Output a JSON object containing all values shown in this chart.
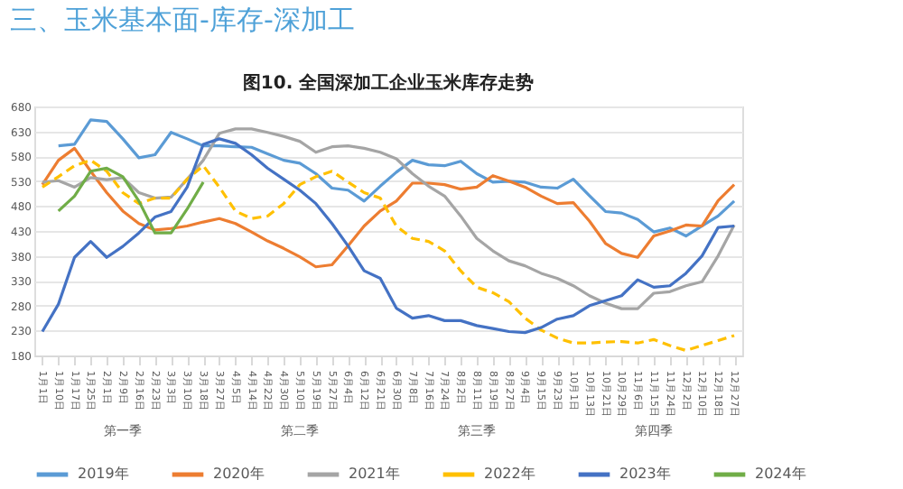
{
  "chart_data": {
    "type": "line",
    "title": "图10. 全国深加工企业玉米库存走势",
    "subtitle": "三、玉米基本面-库存-深加工",
    "categories": [
      "1月1日",
      "1月10日",
      "1月17日",
      "1月25日",
      "2月1日",
      "2月9日",
      "2月16日",
      "2月23日",
      "3月3日",
      "3月10日",
      "3月18日",
      "3月27日",
      "4月5日",
      "4月14日",
      "4月22日",
      "4月30日",
      "5月10日",
      "5月19日",
      "5月27日",
      "6月4日",
      "6月12日",
      "6月21日",
      "6月30日",
      "7月8日",
      "7月16日",
      "7月24日",
      "8月2日",
      "8月11日",
      "8月19日",
      "8月27日",
      "9月4日",
      "9月15日",
      "9月23日",
      "10月1日",
      "10月13日",
      "10月21日",
      "10月29日",
      "11月6日",
      "11月15日",
      "11月24日",
      "12月2日",
      "12月10日",
      "12月18日",
      "12月27日"
    ],
    "series": [
      {
        "name": "2019年",
        "color": "#5b9bd5",
        "values": [
          null,
          601,
          604,
          653,
          650,
          615,
          577,
          583,
          628,
          615,
          601,
          601,
          599,
          598,
          585,
          572,
          566,
          545,
          516,
          512,
          490,
          520,
          548,
          572,
          563,
          561,
          570,
          545,
          528,
          530,
          528,
          518,
          516,
          534,
          501,
          469,
          466,
          453,
          428,
          436,
          420,
          440,
          460,
          490
        ]
      },
      {
        "name": "2020年",
        "color": "#ed7d31",
        "values": [
          523,
          572,
          596,
          550,
          507,
          470,
          445,
          432,
          435,
          440,
          448,
          455,
          445,
          428,
          410,
          395,
          378,
          358,
          362,
          400,
          440,
          470,
          490,
          526,
          526,
          523,
          514,
          518,
          541,
          530,
          518,
          500,
          485,
          487,
          450,
          405,
          385,
          377,
          420,
          430,
          442,
          440,
          491,
          523
        ]
      },
      {
        "name": "2021年",
        "color": "#a5a5a5",
        "values": [
          528,
          531,
          518,
          537,
          533,
          537,
          507,
          496,
          498,
          534,
          572,
          626,
          635,
          635,
          628,
          620,
          610,
          588,
          599,
          601,
          596,
          588,
          575,
          545,
          520,
          500,
          460,
          415,
          390,
          370,
          360,
          345,
          335,
          320,
          300,
          285,
          274,
          274,
          305,
          308,
          320,
          328,
          380,
          442
        ]
      },
      {
        "name": "2022年",
        "color": "#ffc000",
        "line_style": "dashed",
        "values": [
          518,
          539,
          561,
          572,
          550,
          507,
          485,
          496,
          496,
          534,
          561,
          518,
          470,
          455,
          460,
          485,
          523,
          539,
          550,
          528,
          507,
          496,
          440,
          415,
          409,
          390,
          350,
          317,
          306,
          288,
          255,
          231,
          215,
          205,
          205,
          207,
          208,
          205,
          212,
          200,
          190,
          200,
          210,
          220
        ]
      },
      {
        "name": "2023年",
        "color": "#4472c4",
        "values": [
          228,
          283,
          377,
          409,
          377,
          399,
          426,
          458,
          469,
          518,
          604,
          615,
          606,
          583,
          556,
          534,
          512,
          485,
          445,
          400,
          350,
          335,
          275,
          255,
          260,
          250,
          250,
          240,
          234,
          228,
          226,
          236,
          253,
          260,
          280,
          290,
          300,
          332,
          317,
          320,
          345,
          380,
          437,
          440
        ]
      },
      {
        "name": "2024年",
        "color": "#70ad47",
        "values": [
          null,
          470,
          500,
          550,
          556,
          539,
          490,
          426,
          426,
          474,
          528,
          null,
          null,
          null,
          null,
          null,
          null,
          null,
          null,
          null,
          null,
          null,
          null,
          null,
          null,
          null,
          null,
          null,
          null,
          null,
          null,
          null,
          null,
          null,
          null,
          null,
          null,
          null,
          null,
          null,
          null,
          null,
          null,
          null
        ]
      }
    ],
    "ylim": [
      180,
      680
    ],
    "yticks": [
      180,
      230,
      280,
      330,
      380,
      430,
      480,
      530,
      580,
      630,
      680
    ],
    "grid": "y",
    "legend": "bottom",
    "marker": "none",
    "annotations": [
      "第一季",
      "第二季",
      "第三季",
      "第四季"
    ]
  }
}
